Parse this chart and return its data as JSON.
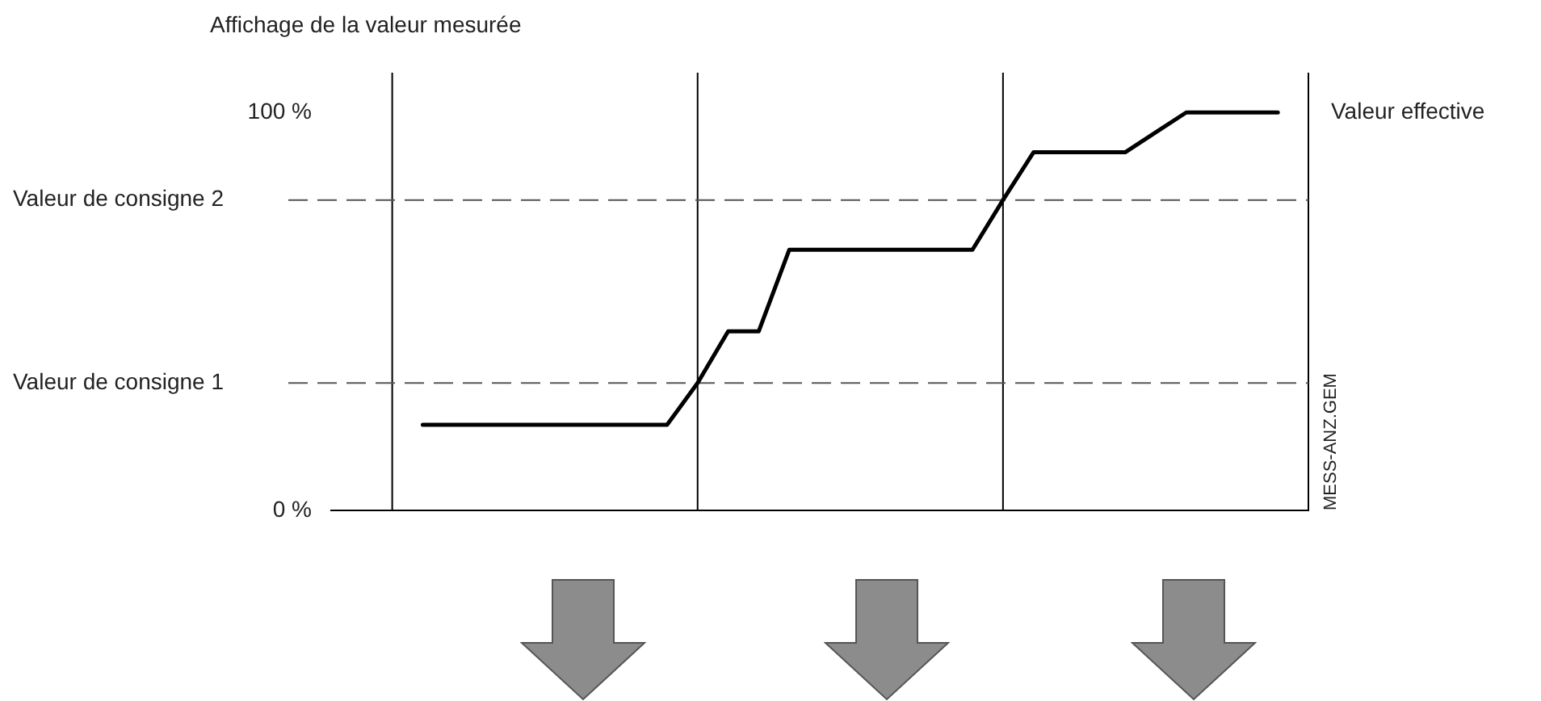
{
  "chart_data": {
    "type": "line",
    "title": "Affichage de la valeur mesurée",
    "categories": [
      null,
      null,
      null,
      null,
      null,
      null,
      null,
      null,
      null,
      null,
      null,
      null,
      null,
      null,
      null,
      null,
      null,
      null,
      null,
      null,
      null,
      null,
      null,
      null,
      null,
      null,
      null,
      null,
      null,
      null,
      null,
      null,
      null
    ],
    "series": [
      {
        "name": "Valeur effective",
        "color": "#000000",
        "values": [
          null,
          null,
          null,
          21.5,
          21.5,
          21.5,
          21.5,
          21.5,
          21.5,
          21.5,
          21.5,
          21.5,
          32,
          45,
          45,
          65.5,
          65.5,
          65.5,
          65.5,
          65.5,
          65.5,
          65.5,
          78,
          90,
          90,
          90,
          90,
          95,
          100,
          100,
          100,
          100,
          null
        ]
      }
    ],
    "ylim": [
      0,
      110
    ],
    "yticks": [
      {
        "value": 0,
        "label": "0 %"
      },
      {
        "value": 100,
        "label": "100 %"
      }
    ],
    "grid": "x",
    "legend": false,
    "marker": "none",
    "line_style": "solid",
    "ref_lines": [
      {
        "axis": "y",
        "value": 32,
        "label": "Valeur de consigne 1",
        "color": "#555555",
        "line_style": "dashed"
      },
      {
        "axis": "y",
        "value": 78,
        "label": "Valeur de consigne 2",
        "color": "#555555",
        "line_style": "dashed"
      }
    ],
    "annotations": [
      "MESS-ANZ.GEM"
    ]
  }
}
